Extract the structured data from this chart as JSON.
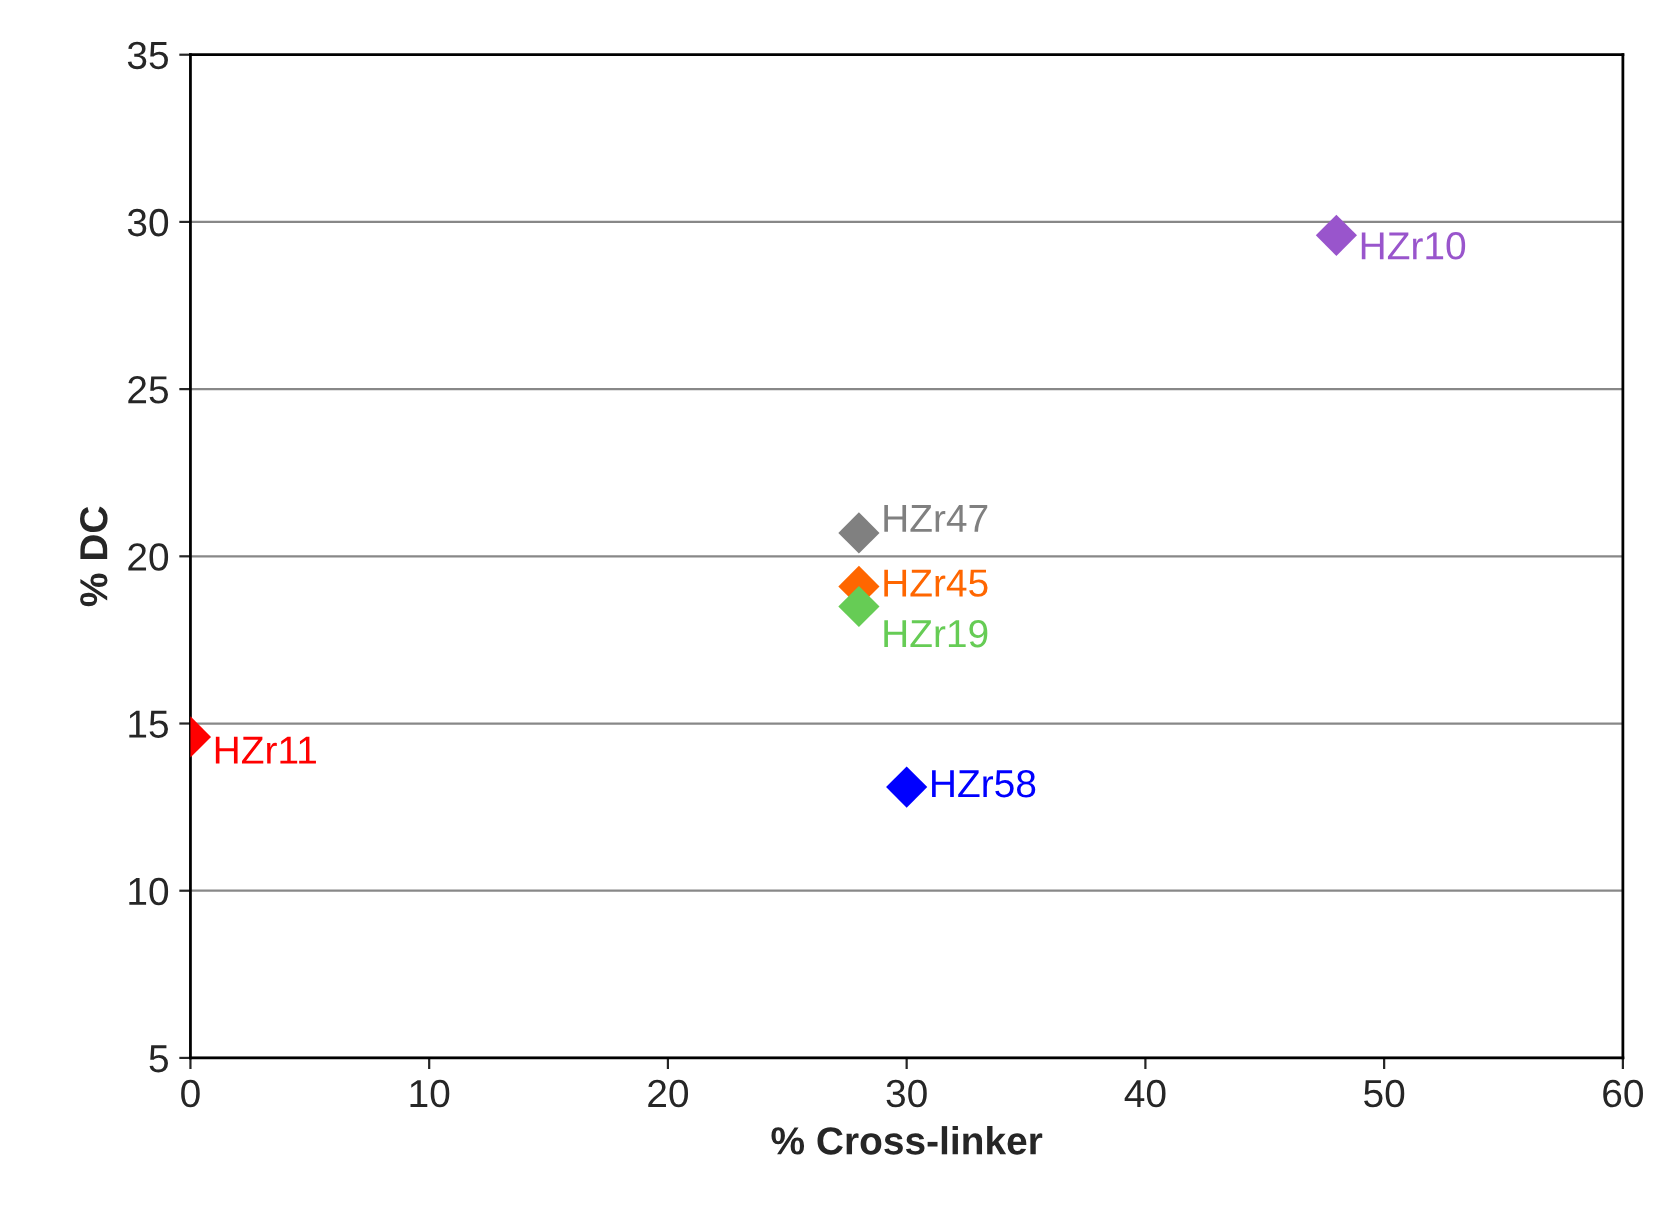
{
  "chart_data": {
    "type": "scatter",
    "xlabel": "% Cross-linker",
    "ylabel": "% DC",
    "xlim": [
      0,
      60
    ],
    "xticks": [
      0,
      10,
      20,
      30,
      40,
      50,
      60
    ],
    "ylim": [
      5,
      35
    ],
    "yticks": [
      5,
      10,
      15,
      20,
      25,
      30,
      35
    ],
    "grid": "y",
    "legend": false,
    "marker": "diamond",
    "series": [
      {
        "name": "HZr10",
        "color": "#9955cc",
        "x": [
          48
        ],
        "values": [
          29.6
        ]
      },
      {
        "name": "HZr47",
        "color": "#808080",
        "x": [
          28
        ],
        "values": [
          20.7
        ]
      },
      {
        "name": "HZr45",
        "color": "#ff6600",
        "x": [
          28
        ],
        "values": [
          19.1
        ]
      },
      {
        "name": "HZr19",
        "color": "#66cc55",
        "x": [
          28
        ],
        "values": [
          18.5
        ]
      },
      {
        "name": "HZr11",
        "color": "#ff0000",
        "x": [
          0
        ],
        "values": [
          14.6
        ]
      },
      {
        "name": "HZr58",
        "color": "#0000ff",
        "x": [
          30
        ],
        "values": [
          13.1
        ]
      }
    ]
  }
}
